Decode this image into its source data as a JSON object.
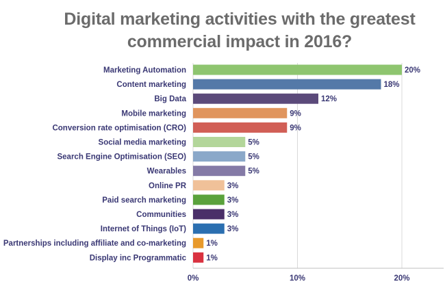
{
  "chart_data": {
    "type": "bar",
    "orientation": "horizontal",
    "title_lines": [
      "Digital marketing activities with the greatest",
      "commercial impact in 2016?"
    ],
    "categories": [
      "Marketing Automation",
      "Content marketing",
      "Big Data",
      "Mobile marketing",
      "Conversion rate optimisation (CRO)",
      "Social media marketing",
      "Search Engine Optimisation (SEO)",
      "Wearables",
      "Online PR",
      "Paid search marketing",
      "Communities",
      "Internet of Things (IoT)",
      "Partnerships including affiliate and co-marketing",
      "Display inc Programmatic"
    ],
    "values": [
      20,
      18,
      12,
      9,
      9,
      5,
      5,
      5,
      3,
      3,
      3,
      3,
      1,
      1
    ],
    "value_labels": [
      "20%",
      "18%",
      "12%",
      "9%",
      "9%",
      "5%",
      "5%",
      "5%",
      "3%",
      "3%",
      "3%",
      "3%",
      "1%",
      "1%"
    ],
    "colors": [
      "#8ec56f",
      "#5479a8",
      "#5b4a7a",
      "#e0955d",
      "#d15f56",
      "#b3d69a",
      "#8aa8c9",
      "#847aa6",
      "#f0c199",
      "#5aa23c",
      "#4a2f69",
      "#2b6fb0",
      "#e89a2c",
      "#d93240"
    ],
    "xlim": [
      0,
      24
    ],
    "x_ticks": [
      0,
      10,
      20
    ],
    "x_tick_labels": [
      "0%",
      "10%",
      "20%"
    ],
    "grid": "vertical",
    "xlabel": "",
    "ylabel": ""
  }
}
